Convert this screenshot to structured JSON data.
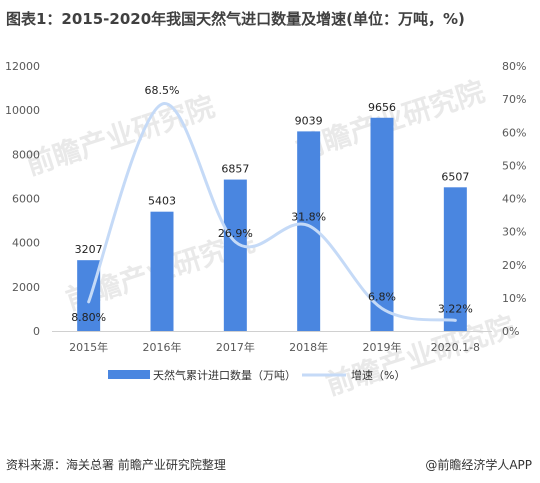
{
  "header": {
    "title": "图表1：2015-2020年我国天然气进口数量及增速(单位：万吨，%)"
  },
  "footer": {
    "source": "资料来源：海关总署  前瞻产业研究院整理",
    "brand": "@前瞻经济学人APP"
  },
  "watermark": {
    "text": "前瞻产业研究院"
  },
  "chart_data": {
    "type": "bar",
    "categories": [
      "2015年",
      "2016年",
      "2017年",
      "2018年",
      "2019年",
      "2020.1-8"
    ],
    "series": [
      {
        "name": "天然气累计进口数量（万吨）",
        "type": "bar",
        "axis": "left",
        "values": [
          3207,
          5403,
          6857,
          9039,
          9656,
          6507
        ],
        "labels": [
          "3207",
          "5403",
          "6857",
          "9039",
          "9656",
          "6507"
        ],
        "color": "#4a86e0"
      },
      {
        "name": "增速（%）",
        "type": "line",
        "axis": "right",
        "values": [
          8.8,
          68.5,
          26.9,
          31.8,
          6.8,
          3.22
        ],
        "labels": [
          "8.80%",
          "68.5%",
          "26.9%",
          "31.8%",
          "6.8%",
          "3.22%"
        ],
        "color": "#c5daf7"
      }
    ],
    "ylim": [
      0,
      12000
    ],
    "y_ticks": [
      "0",
      "2000",
      "4000",
      "6000",
      "8000",
      "10000",
      "12000"
    ],
    "y2lim": [
      0,
      80
    ],
    "y2_ticks": [
      "0%",
      "10%",
      "20%",
      "30%",
      "40%",
      "50%",
      "60%",
      "70%",
      "80%"
    ],
    "grid": false,
    "legend_position": "bottom"
  }
}
